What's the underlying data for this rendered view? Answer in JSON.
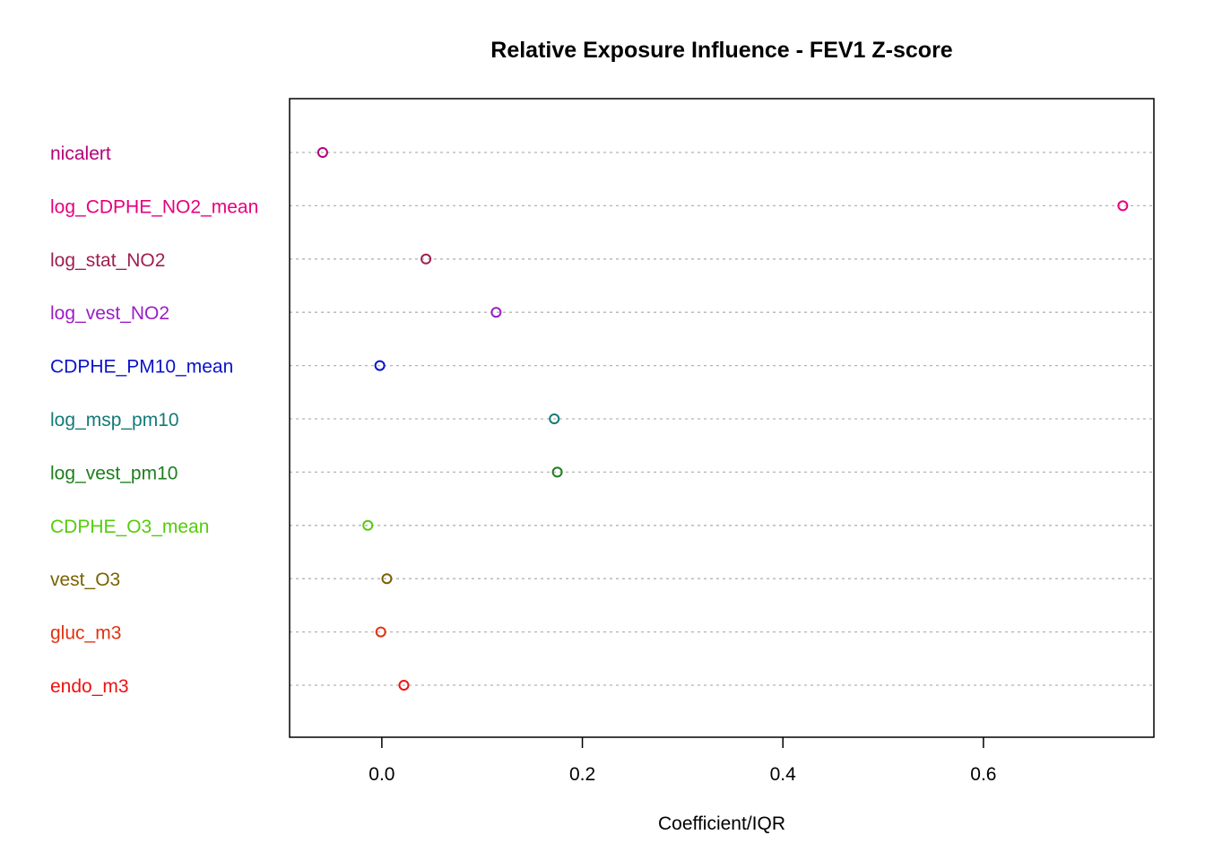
{
  "chart_data": {
    "type": "scatter",
    "title": "Relative Exposure Influence - FEV1 Z-score",
    "xlabel": "Coefficient/IQR",
    "ylabel": "",
    "xlim": [
      -0.092,
      0.77
    ],
    "xticks": [
      0.0,
      0.2,
      0.4,
      0.6
    ],
    "xtick_labels": [
      "0.0",
      "0.2",
      "0.4",
      "0.6"
    ],
    "grid": "horizontal dotted",
    "legend": "none",
    "categories": [
      "nicalert",
      "log_CDPHE_NO2_mean",
      "log_stat_NO2",
      "log_vest_NO2",
      "CDPHE_PM10_mean",
      "log_msp_pm10",
      "log_vest_pm10",
      "CDPHE_O3_mean",
      "vest_O3",
      "gluc_m3",
      "endo_m3"
    ],
    "values": [
      -0.059,
      0.739,
      0.044,
      0.114,
      -0.002,
      0.172,
      0.175,
      -0.014,
      0.005,
      -0.001,
      0.022
    ],
    "colors": [
      "#B5007A",
      "#E6007E",
      "#9E1F50",
      "#9A1FC4",
      "#0A14C8",
      "#137A78",
      "#1E7E1E",
      "#55CC0A",
      "#7A6200",
      "#E03310",
      "#EE1111"
    ]
  }
}
